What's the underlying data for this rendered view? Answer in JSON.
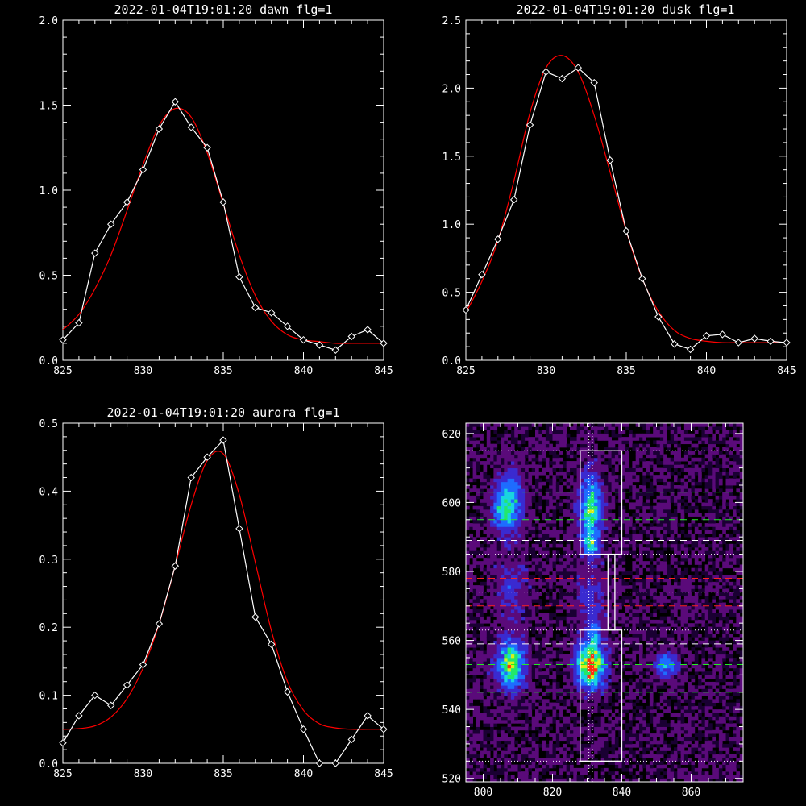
{
  "chart_data": [
    {
      "type": "line",
      "title": "2022-01-04T19:01:20 dawn flg=1",
      "xlim": [
        825,
        845
      ],
      "ylim": [
        0.0,
        2.0
      ],
      "xticks": [
        "825",
        "830",
        "835",
        "840",
        "845"
      ],
      "yticks": [
        "0.0",
        "0.5",
        "1.0",
        "1.5",
        "2.0"
      ],
      "colors": {
        "data": "#ffffff",
        "fit": "#ff0000"
      },
      "series": [
        {
          "marker": "diamond",
          "x": [
            825,
            826,
            827,
            828,
            829,
            830,
            831,
            832,
            833,
            834,
            835,
            836,
            837,
            838,
            839,
            840,
            841,
            842,
            843,
            844,
            845
          ],
          "y": [
            0.12,
            0.22,
            0.63,
            0.8,
            0.93,
            1.12,
            1.36,
            1.52,
            1.37,
            1.25,
            0.93,
            0.49,
            0.31,
            0.28,
            0.2,
            0.12,
            0.09,
            0.06,
            0.14,
            0.18,
            0.1
          ]
        },
        {
          "x": [
            825,
            826,
            827,
            828,
            829,
            830,
            831,
            832,
            833,
            834,
            835,
            836,
            837,
            838,
            839,
            840,
            841,
            842,
            843,
            844,
            845
          ],
          "y": [
            0.18,
            0.27,
            0.42,
            0.62,
            0.88,
            1.15,
            1.38,
            1.48,
            1.43,
            1.22,
            0.92,
            0.62,
            0.38,
            0.23,
            0.15,
            0.12,
            0.11,
            0.1,
            0.1,
            0.1,
            0.1
          ]
        }
      ]
    },
    {
      "type": "line",
      "title": "2022-01-04T19:01:20 dusk flg=1",
      "xlim": [
        825,
        845
      ],
      "ylim": [
        0.0,
        2.5
      ],
      "xticks": [
        "825",
        "830",
        "835",
        "840",
        "845"
      ],
      "yticks": [
        "0.0",
        "0.5",
        "1.0",
        "1.5",
        "2.0",
        "2.5"
      ],
      "colors": {
        "data": "#ffffff",
        "fit": "#ff0000"
      },
      "series": [
        {
          "marker": "diamond",
          "x": [
            825,
            826,
            827,
            828,
            829,
            830,
            831,
            832,
            833,
            834,
            835,
            836,
            837,
            838,
            839,
            840,
            841,
            842,
            843,
            844,
            845
          ],
          "y": [
            0.37,
            0.63,
            0.89,
            1.18,
            1.73,
            2.12,
            2.07,
            2.15,
            2.04,
            1.47,
            0.95,
            0.6,
            0.32,
            0.12,
            0.08,
            0.18,
            0.19,
            0.13,
            0.16,
            0.14,
            0.13
          ]
        },
        {
          "x": [
            825,
            826,
            827,
            828,
            829,
            830,
            831,
            832,
            833,
            834,
            835,
            836,
            837,
            838,
            839,
            840,
            841,
            842,
            843,
            844,
            845
          ],
          "y": [
            0.35,
            0.58,
            0.88,
            1.32,
            1.82,
            2.15,
            2.24,
            2.12,
            1.8,
            1.38,
            0.95,
            0.6,
            0.36,
            0.22,
            0.16,
            0.14,
            0.13,
            0.13,
            0.13,
            0.13,
            0.13
          ]
        }
      ]
    },
    {
      "type": "line",
      "title": "2022-01-04T19:01:20 aurora flg=1",
      "xlim": [
        825,
        845
      ],
      "ylim": [
        0.0,
        0.5
      ],
      "xticks": [
        "825",
        "830",
        "835",
        "840",
        "845"
      ],
      "yticks": [
        "0.0",
        "0.1",
        "0.2",
        "0.3",
        "0.4",
        "0.5"
      ],
      "colors": {
        "data": "#ffffff",
        "fit": "#ff0000"
      },
      "series": [
        {
          "marker": "diamond",
          "x": [
            825,
            826,
            827,
            828,
            829,
            830,
            831,
            832,
            833,
            834,
            835,
            836,
            837,
            838,
            839,
            840,
            841,
            842,
            843,
            844,
            845
          ],
          "y": [
            0.03,
            0.07,
            0.1,
            0.085,
            0.115,
            0.145,
            0.205,
            0.29,
            0.42,
            0.45,
            0.475,
            0.345,
            0.215,
            0.175,
            0.105,
            0.05,
            0.0,
            0.0,
            0.035,
            0.07,
            0.05
          ]
        },
        {
          "x": [
            825,
            826,
            827,
            828,
            829,
            830,
            831,
            832,
            833,
            834,
            835,
            836,
            837,
            838,
            839,
            840,
            841,
            842,
            843,
            844,
            845
          ],
          "y": [
            0.05,
            0.051,
            0.055,
            0.068,
            0.095,
            0.14,
            0.205,
            0.29,
            0.38,
            0.445,
            0.455,
            0.395,
            0.295,
            0.195,
            0.12,
            0.078,
            0.058,
            0.052,
            0.05,
            0.05,
            0.05
          ]
        }
      ]
    },
    {
      "type": "heatmap",
      "xlim": [
        795,
        875
      ],
      "ylim": [
        519,
        623
      ],
      "xticks": [
        "800",
        "820",
        "840",
        "860"
      ],
      "yticks": [
        "520",
        "540",
        "560",
        "580",
        "600",
        "620"
      ],
      "colormap": [
        "#1a0033",
        "#5a0a7a",
        "#3a2ad0",
        "#1e6cff",
        "#19d4e0",
        "#22e86a",
        "#d8ef1a",
        "#ff3010"
      ],
      "blobs": [
        {
          "x": 808,
          "y": 600,
          "sx": 2.2,
          "sy": 5.5,
          "peak": 0.5
        },
        {
          "x": 805,
          "y": 598,
          "sx": 1.5,
          "sy": 4,
          "peak": 0.32
        },
        {
          "x": 831,
          "y": 598,
          "sx": 2.2,
          "sy": 6.5,
          "peak": 0.55
        },
        {
          "x": 831,
          "y": 588,
          "sx": 1.5,
          "sy": 2.5,
          "peak": 0.4
        },
        {
          "x": 832,
          "y": 562,
          "sx": 1.2,
          "sy": 2,
          "peak": 0.38
        },
        {
          "x": 808,
          "y": 553,
          "sx": 2.6,
          "sy": 4.5,
          "peak": 0.7
        },
        {
          "x": 831,
          "y": 553,
          "sx": 2.6,
          "sy": 4,
          "peak": 1.0
        },
        {
          "x": 853,
          "y": 553,
          "sx": 2,
          "sy": 2,
          "peak": 0.45
        },
        {
          "x": 808,
          "y": 575,
          "sx": 3,
          "sy": 6,
          "peak": 0.15
        },
        {
          "x": 831,
          "y": 572,
          "sx": 3,
          "sy": 6,
          "peak": 0.15
        }
      ],
      "boxes": [
        {
          "x0": 828,
          "x1": 840,
          "y0": 585,
          "y1": 615,
          "color": "#ffffff"
        },
        {
          "x0": 836,
          "x1": 838,
          "y0": 563,
          "y1": 585,
          "color": "#ffffff"
        },
        {
          "x0": 828,
          "x1": 840,
          "y0": 525,
          "y1": 563,
          "color": "#ffffff"
        }
      ],
      "hlines": [
        {
          "y": 615,
          "style": "dotted",
          "color": "#ffffff"
        },
        {
          "y": 603,
          "style": "dashed",
          "color": "#22ee22"
        },
        {
          "y": 595,
          "style": "dashed",
          "color": "#22ee22"
        },
        {
          "y": 589,
          "style": "dashed",
          "color": "#ffffff"
        },
        {
          "y": 585,
          "style": "dotted",
          "color": "#ffffff"
        },
        {
          "y": 578,
          "style": "dashed",
          "color": "#ff2020"
        },
        {
          "y": 574,
          "style": "dotted",
          "color": "#ffffff"
        },
        {
          "y": 570,
          "style": "dashed",
          "color": "#ff2020"
        },
        {
          "y": 563,
          "style": "dotted",
          "color": "#ffffff"
        },
        {
          "y": 559,
          "style": "dashed",
          "color": "#ffffff"
        },
        {
          "y": 553,
          "style": "dashed",
          "color": "#22ee22"
        },
        {
          "y": 545,
          "style": "dashed",
          "color": "#22ee22"
        },
        {
          "y": 525,
          "style": "dotted",
          "color": "#ffffff"
        }
      ],
      "vlines": [
        {
          "x": 830.5,
          "style": "dotted",
          "color": "#ffffff"
        },
        {
          "x": 831.5,
          "style": "dotted",
          "color": "#ffffff"
        }
      ]
    }
  ]
}
